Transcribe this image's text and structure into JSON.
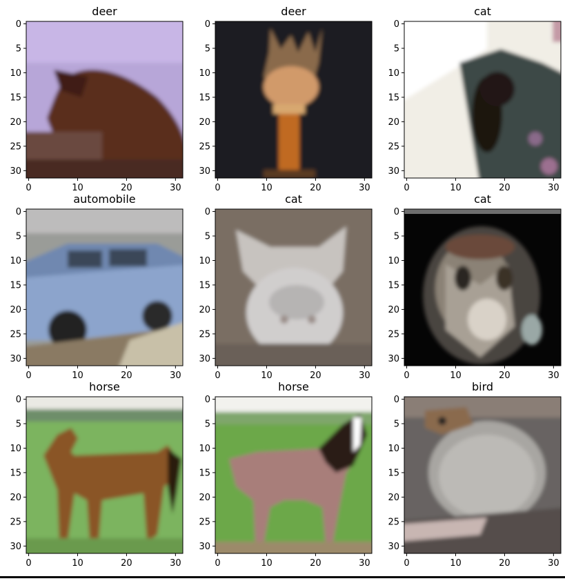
{
  "figure": {
    "panels": [
      {
        "title": "deer",
        "scene": "deer-snow"
      },
      {
        "title": "deer",
        "scene": "deer-statue"
      },
      {
        "title": "cat",
        "scene": "cat-window"
      },
      {
        "title": "automobile",
        "scene": "car"
      },
      {
        "title": "cat",
        "scene": "cat-gray"
      },
      {
        "title": "cat",
        "scene": "cat-dark"
      },
      {
        "title": "horse",
        "scene": "horse-brown"
      },
      {
        "title": "horse",
        "scene": "horse-pinto"
      },
      {
        "title": "bird",
        "scene": "bird-gray"
      }
    ],
    "y_ticks": [
      "0",
      "5",
      "10",
      "15",
      "20",
      "25",
      "30"
    ],
    "x_ticks": [
      "0",
      "10",
      "20",
      "30"
    ]
  }
}
